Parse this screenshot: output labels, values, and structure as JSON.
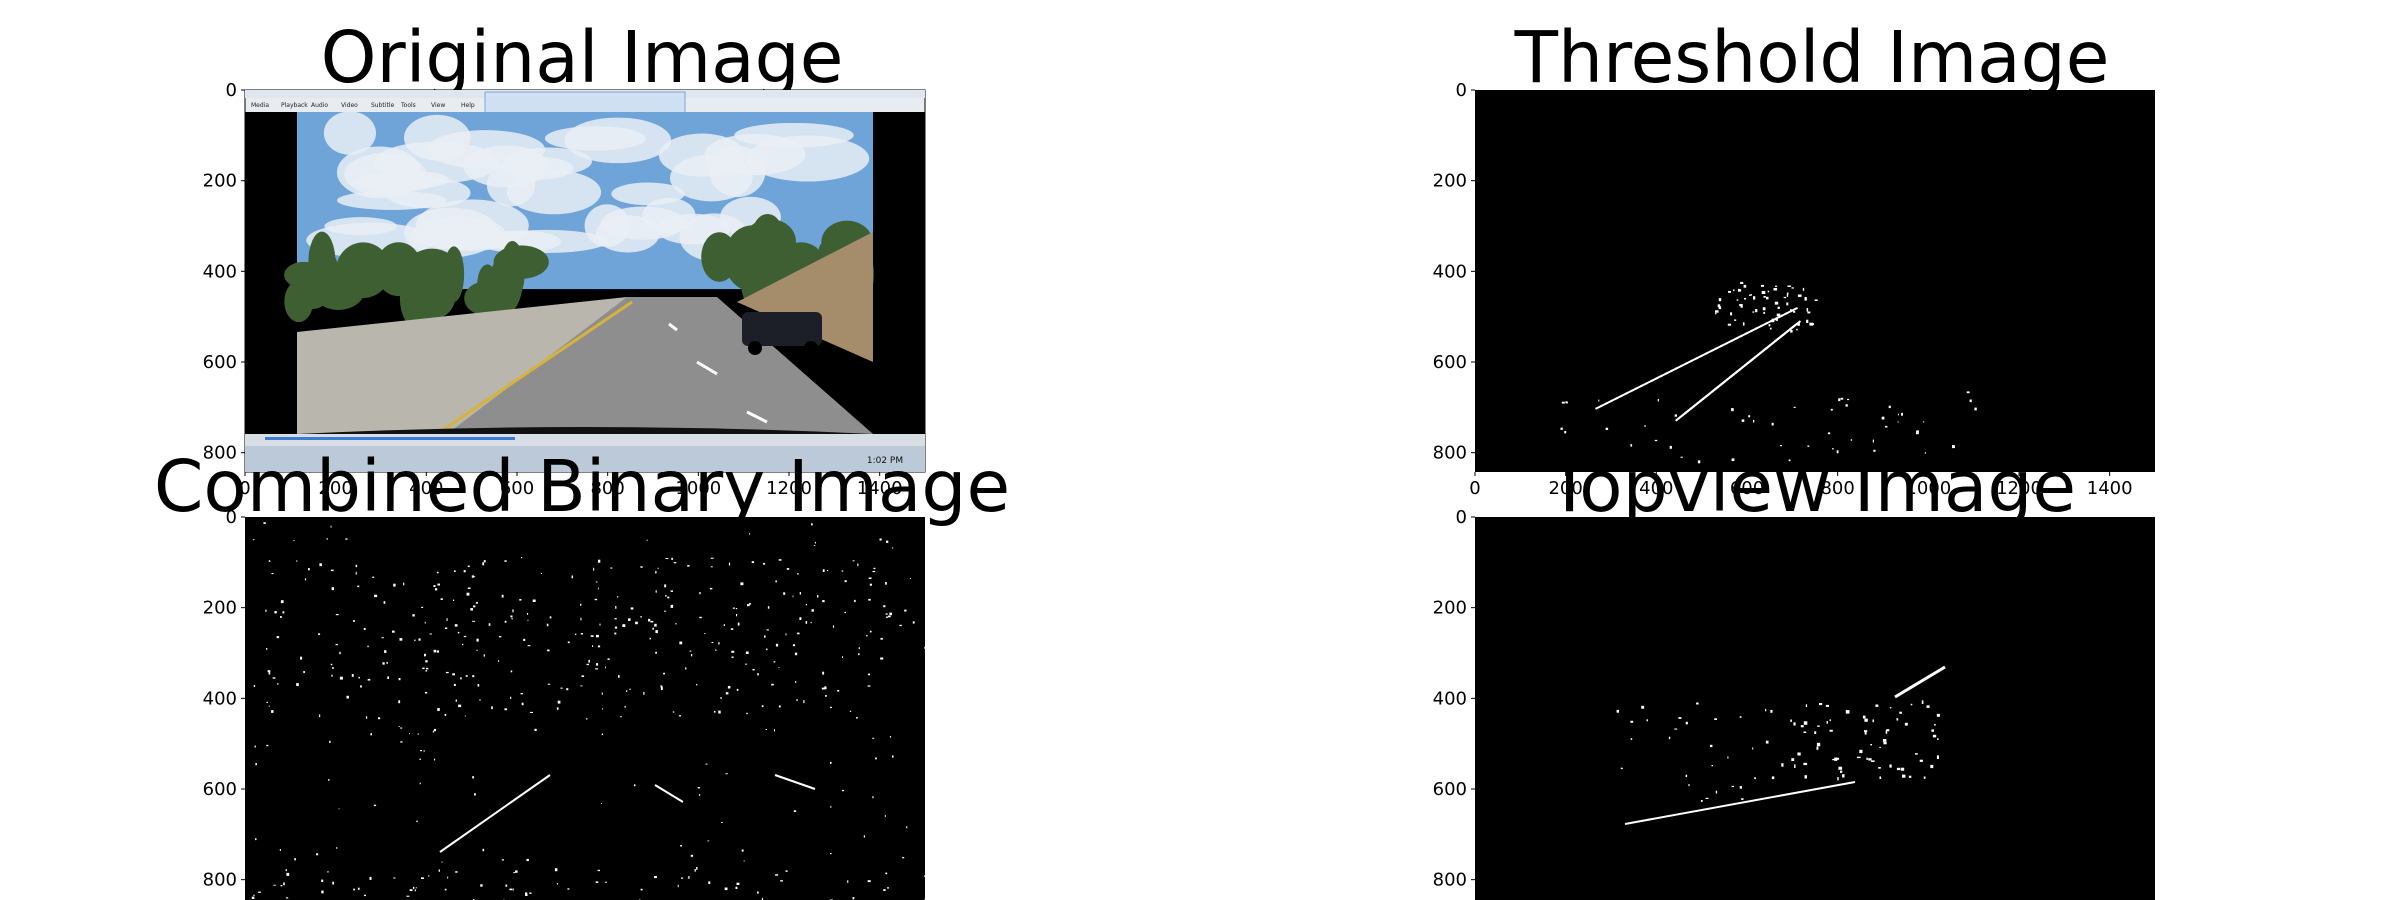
{
  "window": {
    "background": "#ffffff"
  },
  "panels": [
    {
      "key": "original",
      "title": "Original Image",
      "kind": "photo",
      "x_ticks": [
        "0",
        "200",
        "400",
        "600",
        "800",
        "1000",
        "1200",
        "1400"
      ],
      "y_ticks": [
        "0",
        "200",
        "400",
        "600",
        "800"
      ],
      "show_x_ticks": true,
      "show_y_ticks": true,
      "colors": {
        "sky": "#6fa4d8",
        "cloud": "#e9eef4",
        "road": "#8e8e8e",
        "barrier": "#b9b6ae",
        "trees": "#3e5f32",
        "frame": "#000000"
      }
    },
    {
      "key": "threshold",
      "title": "Threshold Image",
      "kind": "binary",
      "x_ticks": [
        "0",
        "200",
        "400",
        "600",
        "800",
        "1000",
        "1200",
        "1400"
      ],
      "y_ticks": [
        "0",
        "200",
        "400",
        "600",
        "800"
      ],
      "show_x_ticks": true,
      "show_y_ticks": true,
      "colors": {
        "background": "#000000",
        "foreground": "#ffffff"
      }
    },
    {
      "key": "combined",
      "title": "Combined Binary Image",
      "kind": "binary",
      "x_ticks": [],
      "y_ticks": [
        "0",
        "200",
        "400",
        "600",
        "800"
      ],
      "show_x_ticks": false,
      "show_y_ticks": true,
      "colors": {
        "background": "#000000",
        "foreground": "#ffffff"
      }
    },
    {
      "key": "topview",
      "title": "Topview Image",
      "kind": "binary",
      "x_ticks": [],
      "y_ticks": [
        "0",
        "200",
        "400",
        "600",
        "800"
      ],
      "show_x_ticks": false,
      "show_y_ticks": true,
      "colors": {
        "background": "#000000",
        "foreground": "#ffffff"
      }
    }
  ],
  "screenshot_ui": {
    "menu_items": [
      "Media",
      "Playback",
      "Audio",
      "Video",
      "Subtitle",
      "Tools",
      "View",
      "Help"
    ],
    "clock": "1:02 PM"
  }
}
